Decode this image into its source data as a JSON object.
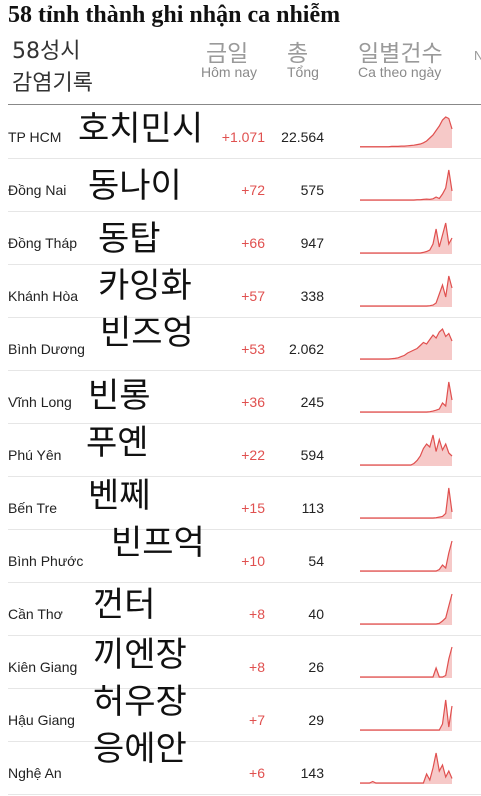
{
  "title": "58 tỉnh thành ghi nhận ca nhiễm",
  "subtitle_ko_line1": "58성시",
  "subtitle_ko_line2": "감염기록",
  "columns": {
    "today_ko": "금일",
    "today_vi": "Hôm nay",
    "total_ko": "총",
    "total_vi": "Tổng",
    "daily_ko": "일별건수",
    "daily_vi": "Ca theo ngày",
    "cut_off": "N"
  },
  "colors": {
    "accent": "#e0504f",
    "spark_fill": "#f6c9c8"
  },
  "rows": [
    {
      "name": "TP HCM",
      "ko": "호치민시",
      "today": "+1.071",
      "total": "22.564",
      "series": [
        1,
        1,
        1,
        1,
        1,
        1,
        1,
        1,
        1,
        1,
        2,
        2,
        2,
        3,
        3,
        4,
        5,
        6,
        8,
        10,
        14,
        20,
        30,
        40,
        55,
        70,
        90,
        100,
        95,
        60
      ]
    },
    {
      "name": "Đồng Nai",
      "ko": "동나이",
      "today": "+72",
      "total": "575",
      "series": [
        0,
        0,
        0,
        0,
        0,
        0,
        0,
        0,
        0,
        0,
        0,
        0,
        0,
        0,
        0,
        0,
        0,
        0,
        1,
        1,
        2,
        3,
        2,
        4,
        10,
        5,
        20,
        40,
        100,
        30
      ]
    },
    {
      "name": "Đồng Tháp",
      "ko": "동탑",
      "today": "+66",
      "total": "947",
      "series": [
        0,
        0,
        0,
        0,
        0,
        0,
        0,
        0,
        0,
        0,
        0,
        0,
        0,
        0,
        0,
        0,
        0,
        0,
        0,
        0,
        2,
        5,
        10,
        30,
        80,
        20,
        60,
        100,
        30,
        50
      ]
    },
    {
      "name": "Khánh Hòa",
      "ko": "카잉화",
      "today": "+57",
      "total": "338",
      "series": [
        0,
        0,
        0,
        0,
        0,
        0,
        0,
        0,
        0,
        0,
        0,
        0,
        0,
        0,
        0,
        0,
        0,
        0,
        0,
        0,
        0,
        0,
        1,
        3,
        10,
        40,
        70,
        30,
        100,
        60
      ]
    },
    {
      "name": "Bình Dương",
      "ko": "빈즈엉",
      "today": "+53",
      "total": "2.062",
      "series": [
        0,
        0,
        0,
        0,
        0,
        0,
        0,
        0,
        0,
        0,
        1,
        2,
        4,
        8,
        12,
        20,
        25,
        30,
        35,
        45,
        55,
        50,
        65,
        80,
        70,
        90,
        100,
        75,
        85,
        60
      ]
    },
    {
      "name": "Vĩnh Long",
      "ko": "빈롱",
      "today": "+36",
      "total": "245",
      "series": [
        0,
        0,
        0,
        0,
        0,
        0,
        0,
        0,
        0,
        0,
        0,
        0,
        0,
        0,
        0,
        0,
        0,
        0,
        0,
        0,
        0,
        0,
        1,
        3,
        6,
        10,
        30,
        20,
        100,
        40
      ]
    },
    {
      "name": "Phú Yên",
      "ko": "푸옌",
      "today": "+22",
      "total": "594",
      "series": [
        0,
        0,
        0,
        0,
        0,
        0,
        0,
        0,
        0,
        0,
        0,
        0,
        0,
        0,
        0,
        0,
        0,
        5,
        15,
        30,
        55,
        70,
        60,
        100,
        45,
        85,
        50,
        70,
        40,
        30
      ]
    },
    {
      "name": "Bến Tre",
      "ko": "벤쩨",
      "today": "+15",
      "total": "113",
      "series": [
        0,
        0,
        0,
        0,
        0,
        0,
        0,
        0,
        0,
        0,
        0,
        0,
        0,
        0,
        0,
        0,
        0,
        0,
        0,
        0,
        0,
        0,
        0,
        0,
        1,
        3,
        5,
        15,
        100,
        20
      ]
    },
    {
      "name": "Bình Phước",
      "ko": "빈프억",
      "today": "+10",
      "total": "54",
      "series": [
        0,
        0,
        0,
        0,
        0,
        0,
        0,
        0,
        0,
        0,
        0,
        0,
        0,
        0,
        0,
        0,
        0,
        0,
        0,
        0,
        0,
        0,
        0,
        0,
        0,
        5,
        20,
        10,
        60,
        100
      ]
    },
    {
      "name": "Cần Thơ",
      "ko": "껀터",
      "today": "+8",
      "total": "40",
      "series": [
        0,
        0,
        0,
        0,
        0,
        0,
        0,
        0,
        0,
        0,
        0,
        0,
        0,
        0,
        0,
        0,
        0,
        0,
        0,
        0,
        0,
        0,
        0,
        0,
        0,
        2,
        10,
        20,
        60,
        100
      ]
    },
    {
      "name": "Kiên Giang",
      "ko": "끼엔장",
      "today": "+8",
      "total": "26",
      "series": [
        0,
        0,
        0,
        0,
        0,
        0,
        0,
        0,
        0,
        0,
        0,
        0,
        0,
        0,
        0,
        0,
        0,
        0,
        0,
        0,
        0,
        0,
        0,
        0,
        30,
        0,
        0,
        5,
        60,
        100
      ]
    },
    {
      "name": "Hậu Giang",
      "ko": "허우장",
      "today": "+7",
      "total": "29",
      "series": [
        0,
        0,
        0,
        0,
        0,
        0,
        0,
        0,
        0,
        0,
        0,
        0,
        0,
        0,
        0,
        0,
        0,
        0,
        0,
        0,
        0,
        0,
        0,
        0,
        0,
        0,
        20,
        100,
        10,
        80
      ]
    },
    {
      "name": "Nghệ An",
      "ko": "응에안",
      "today": "+6",
      "total": "143",
      "series": [
        0,
        0,
        0,
        0,
        5,
        0,
        0,
        0,
        0,
        0,
        0,
        0,
        0,
        0,
        0,
        0,
        0,
        0,
        0,
        0,
        0,
        30,
        10,
        50,
        100,
        40,
        60,
        20,
        40,
        15
      ]
    }
  ]
}
